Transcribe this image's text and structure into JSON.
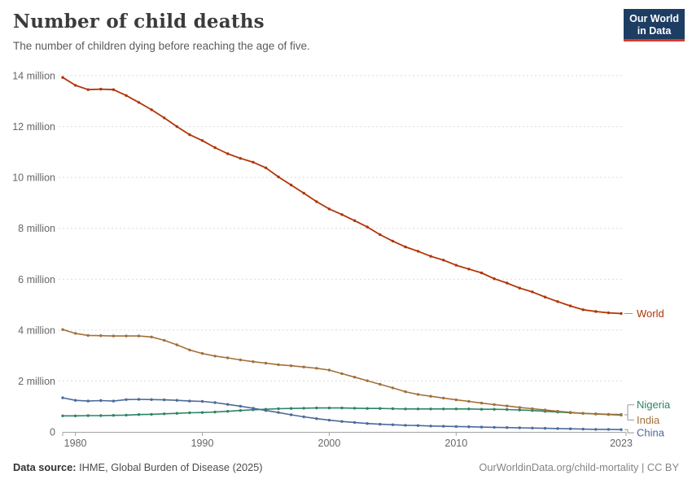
{
  "header": {
    "title": "Number of child deaths",
    "subtitle": "The number of children dying before reaching the age of five."
  },
  "logo": {
    "line1": "Our World",
    "line2": "in Data",
    "bg_color": "#1d3d63",
    "bar_color": "#d93a2b"
  },
  "footer": {
    "source_label": "Data source:",
    "source_text": " IHME, Global Burden of Disease (2025)",
    "right_text": "OurWorldinData.org/child-mortality | CC BY"
  },
  "chart_data": {
    "type": "line",
    "title": "Number of child deaths",
    "subtitle": "The number of children dying before reaching the age of five.",
    "unit": "million",
    "xlim": [
      1979,
      2023
    ],
    "ylim": [
      0,
      14
    ],
    "grid": true,
    "legend_position": "right-end-labels",
    "x_ticks": [
      1980,
      1990,
      2000,
      2010,
      2023
    ],
    "y_ticks": [
      {
        "value": 0,
        "label": "0"
      },
      {
        "value": 2,
        "label": "2 million"
      },
      {
        "value": 4,
        "label": "4 million"
      },
      {
        "value": 6,
        "label": "6 million"
      },
      {
        "value": 8,
        "label": "8 million"
      },
      {
        "value": 10,
        "label": "10 million"
      },
      {
        "value": 12,
        "label": "12 million"
      },
      {
        "value": 14,
        "label": "14 million"
      }
    ],
    "x": [
      1979,
      1980,
      1981,
      1982,
      1983,
      1984,
      1985,
      1986,
      1987,
      1988,
      1989,
      1990,
      1991,
      1992,
      1993,
      1994,
      1995,
      1996,
      1997,
      1998,
      1999,
      2000,
      2001,
      2002,
      2003,
      2004,
      2005,
      2006,
      2007,
      2008,
      2009,
      2010,
      2011,
      2012,
      2013,
      2014,
      2015,
      2016,
      2017,
      2018,
      2019,
      2020,
      2021,
      2022,
      2023
    ],
    "series": [
      {
        "name": "World",
        "color": "#b13507",
        "values": [
          13.93,
          13.62,
          13.45,
          13.47,
          13.45,
          13.22,
          12.95,
          12.66,
          12.34,
          12.0,
          11.68,
          11.45,
          11.17,
          10.93,
          10.75,
          10.6,
          10.38,
          10.02,
          9.7,
          9.38,
          9.05,
          8.76,
          8.54,
          8.3,
          8.05,
          7.75,
          7.5,
          7.27,
          7.1,
          6.9,
          6.75,
          6.55,
          6.4,
          6.25,
          6.02,
          5.85,
          5.65,
          5.5,
          5.3,
          5.12,
          4.95,
          4.8,
          4.73,
          4.68,
          4.65
        ]
      },
      {
        "name": "Nigeria",
        "color": "#2c8465",
        "values": [
          0.63,
          0.63,
          0.64,
          0.64,
          0.65,
          0.66,
          0.68,
          0.69,
          0.71,
          0.73,
          0.75,
          0.76,
          0.78,
          0.81,
          0.84,
          0.87,
          0.89,
          0.91,
          0.92,
          0.93,
          0.94,
          0.94,
          0.94,
          0.93,
          0.92,
          0.92,
          0.91,
          0.9,
          0.9,
          0.9,
          0.9,
          0.9,
          0.9,
          0.89,
          0.89,
          0.88,
          0.86,
          0.84,
          0.81,
          0.78,
          0.75,
          0.73,
          0.71,
          0.69,
          0.68
        ]
      },
      {
        "name": "India",
        "color": "#a1703a",
        "values": [
          4.02,
          3.87,
          3.79,
          3.78,
          3.77,
          3.77,
          3.77,
          3.73,
          3.6,
          3.42,
          3.22,
          3.08,
          2.98,
          2.91,
          2.83,
          2.76,
          2.7,
          2.64,
          2.6,
          2.55,
          2.5,
          2.43,
          2.29,
          2.15,
          2.01,
          1.87,
          1.73,
          1.58,
          1.47,
          1.4,
          1.33,
          1.26,
          1.2,
          1.13,
          1.07,
          1.02,
          0.96,
          0.91,
          0.86,
          0.81,
          0.77,
          0.73,
          0.7,
          0.68,
          0.66
        ]
      },
      {
        "name": "China",
        "color": "#4c6a9c",
        "values": [
          1.34,
          1.24,
          1.21,
          1.23,
          1.21,
          1.27,
          1.28,
          1.27,
          1.26,
          1.24,
          1.21,
          1.2,
          1.15,
          1.08,
          1.01,
          0.93,
          0.84,
          0.76,
          0.67,
          0.59,
          0.52,
          0.46,
          0.41,
          0.37,
          0.33,
          0.3,
          0.28,
          0.26,
          0.25,
          0.23,
          0.22,
          0.21,
          0.2,
          0.19,
          0.18,
          0.17,
          0.16,
          0.15,
          0.14,
          0.13,
          0.12,
          0.11,
          0.1,
          0.1,
          0.09
        ]
      }
    ]
  }
}
